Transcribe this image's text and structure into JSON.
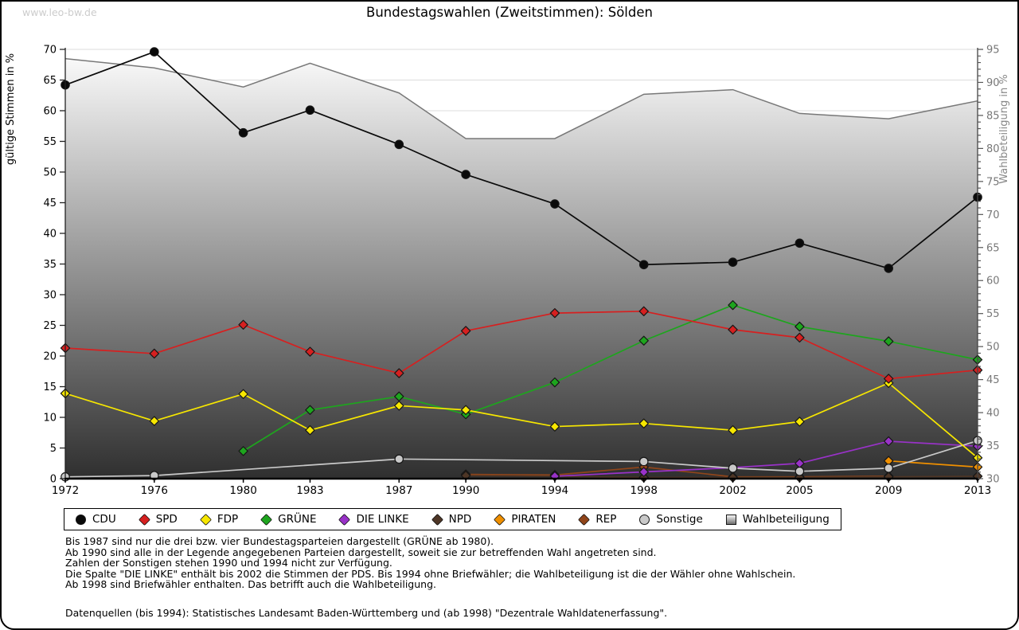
{
  "watermark": "www.leo-bw.de",
  "footnotes": [
    "Bis 1987 sind nur die drei bzw. vier Bundestagsparteien dargestellt (GRÜNE ab 1980).",
    "Ab 1990 sind alle in der Legende angegebenen Parteien dargestellt, soweit sie zur betreffenden Wahl angetreten sind.",
    "Zahlen der Sonstigen stehen 1990 und 1994 nicht zur Verfügung.",
    "Die Spalte \"DIE LINKE\" enthält bis 2002 die Stimmen der PDS. Bis 1994 ohne Briefwähler; die Wahlbeteiligung ist die der Wähler ohne Wahlschein.",
    "Ab 1998 sind Briefwähler enthalten. Das betrifft auch die Wahlbeteiligung.",
    "",
    "Datenquellen (bis 1994): Statistisches Landesamt Baden-Württemberg und (ab 1998) \"Dezentrale Wahldatenerfassung\"."
  ],
  "chart_data": {
    "type": "line",
    "title": "Bundestagswahlen (Zweitstimmen): Sölden",
    "categories": [
      1972,
      1976,
      1980,
      1983,
      1987,
      1990,
      1994,
      1998,
      2002,
      2005,
      2009,
      2013
    ],
    "left_axis": {
      "label": "gültige Stimmen in %",
      "min": 0,
      "max": 70,
      "step": 5
    },
    "right_axis": {
      "label": "Wahlbeteiligung in %",
      "min": 30,
      "max": 95,
      "step": 5
    },
    "grid": true,
    "legend_position": "bottom",
    "series": [
      {
        "name": "CDU",
        "color": "#0a0a0a",
        "marker": "circle",
        "axis": "left",
        "values": [
          64.2,
          69.6,
          56.4,
          60.1,
          54.5,
          49.6,
          44.8,
          34.9,
          35.3,
          38.4,
          34.3,
          45.9
        ]
      },
      {
        "name": "SPD",
        "color": "#d62020",
        "marker": "diamond",
        "axis": "left",
        "values": [
          21.3,
          20.4,
          25.1,
          20.7,
          17.2,
          24.1,
          27.0,
          27.3,
          24.3,
          23.0,
          16.3,
          17.7
        ]
      },
      {
        "name": "FDP",
        "color": "#f7e700",
        "marker": "diamond",
        "axis": "left",
        "values": [
          13.9,
          9.4,
          13.8,
          7.9,
          11.9,
          11.2,
          8.5,
          9.0,
          7.9,
          9.3,
          15.6,
          3.4
        ]
      },
      {
        "name": "GRÜNE",
        "color": "#1ea51e",
        "marker": "diamond",
        "axis": "left",
        "values": [
          null,
          null,
          4.5,
          11.2,
          13.4,
          10.5,
          15.7,
          22.5,
          28.3,
          24.8,
          22.4,
          19.4
        ]
      },
      {
        "name": "DIE LINKE",
        "color": "#9932c8",
        "marker": "diamond",
        "axis": "left",
        "values": [
          null,
          null,
          null,
          null,
          null,
          null,
          0.4,
          1.1,
          1.8,
          2.5,
          6.1,
          5.3
        ]
      },
      {
        "name": "NPD",
        "color": "#4e3626",
        "marker": "diamond",
        "axis": "left",
        "values": [
          null,
          null,
          null,
          null,
          null,
          0.5,
          0.4,
          0.2,
          0.2,
          0.2,
          0.3,
          0.4
        ]
      },
      {
        "name": "PIRATEN",
        "color": "#ef8f00",
        "marker": "diamond",
        "axis": "left",
        "values": [
          null,
          null,
          null,
          null,
          null,
          null,
          null,
          null,
          null,
          null,
          2.9,
          1.9
        ]
      },
      {
        "name": "REP",
        "color": "#90451a",
        "marker": "diamond",
        "axis": "left",
        "values": [
          null,
          null,
          null,
          null,
          null,
          0.7,
          0.6,
          1.9,
          0.3,
          0.3,
          0.4,
          null
        ]
      },
      {
        "name": "Sonstige",
        "color": "#c9c9c9",
        "marker": "circle",
        "axis": "left",
        "values": [
          0.3,
          0.5,
          null,
          null,
          3.2,
          null,
          null,
          2.8,
          1.7,
          1.2,
          1.7,
          6.2
        ]
      },
      {
        "name": "Wahlbeteiligung",
        "color": "#787878",
        "marker": "square",
        "axis": "right",
        "area": true,
        "values": [
          93.6,
          92.2,
          89.3,
          92.9,
          88.4,
          81.5,
          81.5,
          88.2,
          88.9,
          85.3,
          84.5,
          87.2
        ]
      }
    ]
  }
}
